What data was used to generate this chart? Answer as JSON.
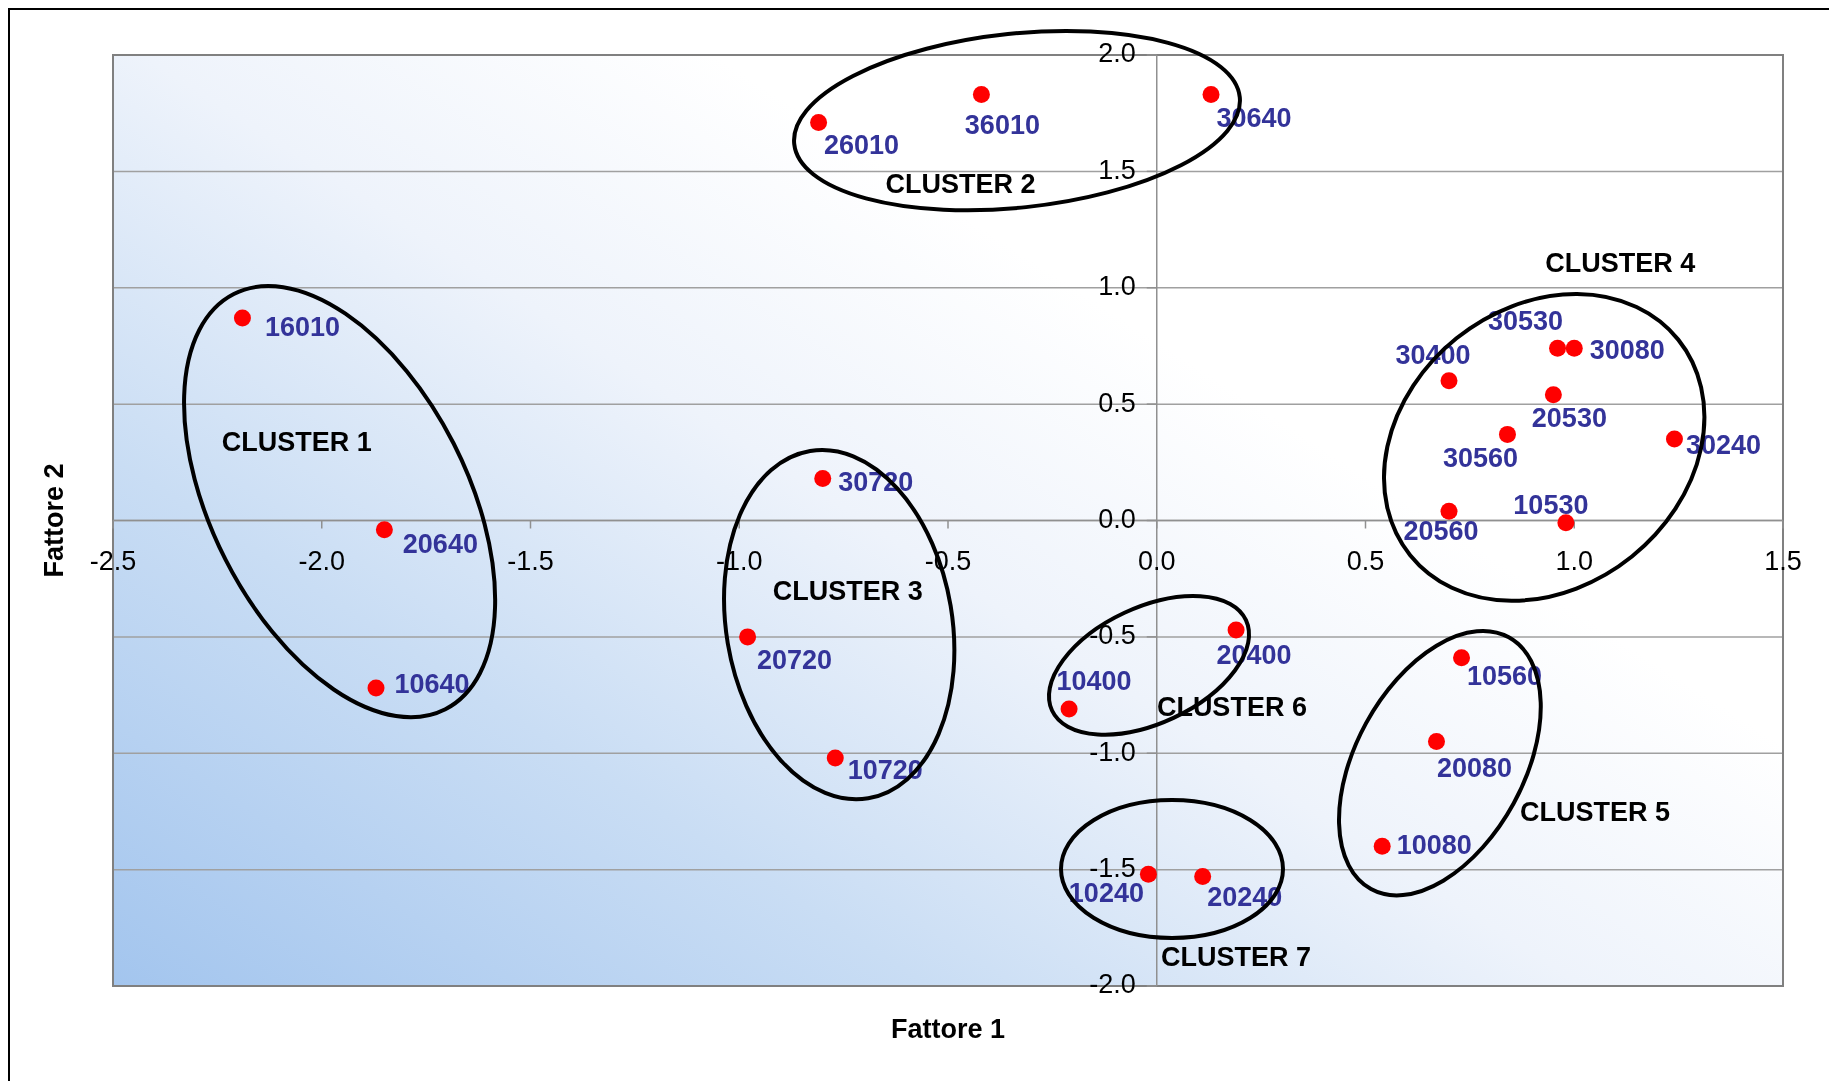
{
  "chart_data": {
    "type": "scatter",
    "xlabel": "Fattore 1",
    "ylabel": "Fattore 2",
    "color": "#ff0000",
    "marker": "circle",
    "x": [
      -2.19,
      -1.85,
      -1.87,
      -0.81,
      -0.42,
      0.13,
      -0.8,
      -0.98,
      -0.77,
      0.96,
      1.0,
      0.7,
      0.95,
      0.84,
      1.24,
      0.7,
      0.98,
      0.73,
      0.67,
      0.54,
      -0.21,
      0.19,
      -0.02,
      0.11
    ],
    "values": [
      0.87,
      -0.04,
      -0.72,
      1.71,
      1.83,
      1.83,
      0.18,
      -0.5,
      -1.02,
      0.74,
      0.74,
      0.6,
      0.54,
      0.37,
      0.35,
      0.04,
      -0.01,
      -0.59,
      -0.95,
      -1.4,
      -0.81,
      -0.47,
      -1.52,
      -1.53
    ],
    "xlim": [
      -2.5,
      1.5
    ],
    "xticks": [
      -2.5,
      {
        "value": -2,
        "label": "-2.0"
      },
      -1.5,
      {
        "value": -1,
        "label": "-1.0"
      },
      -0.5,
      {
        "value": 0,
        "label": "0.0"
      },
      0.5,
      {
        "value": 1,
        "label": "1.0"
      },
      1.5
    ],
    "ylim": [
      -2,
      2
    ],
    "yticks": [
      {
        "value": -2,
        "label": "-2.0"
      },
      -1.5,
      {
        "value": -1,
        "label": "-1.0"
      },
      -0.5,
      {
        "value": 0,
        "label": "0.0"
      },
      0.5,
      {
        "value": 1,
        "label": "1.0"
      },
      1.5,
      {
        "value": 2,
        "label": "2.0"
      }
    ],
    "grid": "y",
    "annotations": [
      {
        "text": "16010",
        "x": -2.19,
        "y": 0.87
      },
      {
        "text": "20640",
        "x": -1.85,
        "y": -0.04
      },
      {
        "text": "10640",
        "x": -1.87,
        "y": -0.72
      },
      {
        "text": "26010",
        "x": -0.81,
        "y": 1.71
      },
      {
        "text": "36010",
        "x": -0.42,
        "y": 1.83
      },
      {
        "text": "30640",
        "x": 0.13,
        "y": 1.83
      },
      {
        "text": "30720",
        "x": -0.8,
        "y": 0.18
      },
      {
        "text": "20720",
        "x": -0.98,
        "y": -0.5
      },
      {
        "text": "10720",
        "x": -0.77,
        "y": -1.02
      },
      {
        "text": "30530",
        "x": 0.96,
        "y": 0.74
      },
      {
        "text": "30080",
        "x": 1.0,
        "y": 0.74
      },
      {
        "text": "30400",
        "x": 0.7,
        "y": 0.6
      },
      {
        "text": "20530",
        "x": 0.95,
        "y": 0.54
      },
      {
        "text": "30560",
        "x": 0.84,
        "y": 0.37
      },
      {
        "text": "30240",
        "x": 1.24,
        "y": 0.35
      },
      {
        "text": "20560",
        "x": 0.7,
        "y": 0.04
      },
      {
        "text": "10530",
        "x": 0.98,
        "y": -0.01
      },
      {
        "text": "10560",
        "x": 0.73,
        "y": -0.59
      },
      {
        "text": "20080",
        "x": 0.67,
        "y": -0.95
      },
      {
        "text": "10080",
        "x": 0.54,
        "y": -1.4
      },
      {
        "text": "10400",
        "x": -0.21,
        "y": -0.81
      },
      {
        "text": "20400",
        "x": 0.19,
        "y": -0.47
      },
      {
        "text": "10240",
        "x": -0.02,
        "y": -1.52
      },
      {
        "text": "20240",
        "x": 0.11,
        "y": -1.53
      },
      "CLUSTER 1",
      "CLUSTER 2",
      "CLUSTER 3",
      "CLUSTER 4",
      "CLUSTER 5",
      "CLUSTER 6",
      "CLUSTER 7"
    ]
  }
}
